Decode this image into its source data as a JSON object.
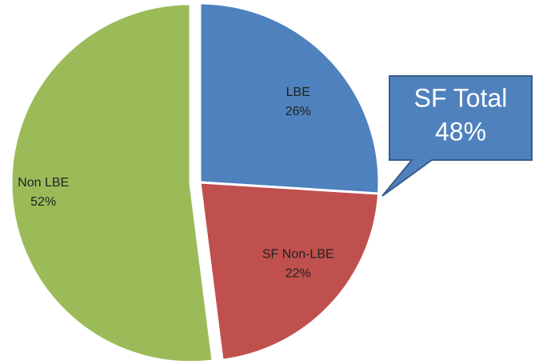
{
  "chart_data": {
    "type": "pie",
    "categories": [
      "LBE",
      "SF Non-LBE",
      "Non LBE"
    ],
    "values": [
      26,
      22,
      52
    ],
    "value_labels": [
      "26%",
      "22%",
      "52%"
    ],
    "colors": [
      "#4f81bd",
      "#c0504d",
      "#9bbb59"
    ],
    "exploded": [
      false,
      false,
      true
    ],
    "annotation": [
      "SF Total",
      "48%"
    ]
  }
}
